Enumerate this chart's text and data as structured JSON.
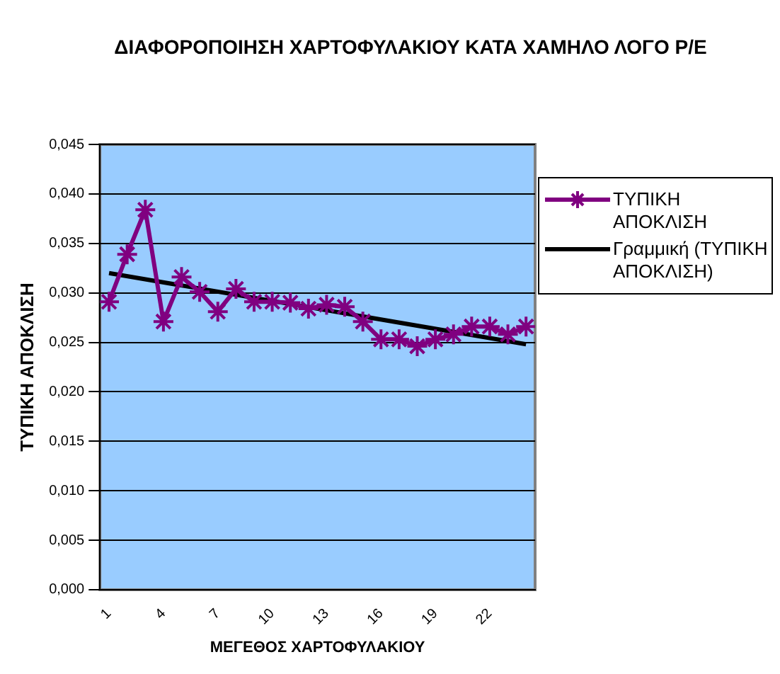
{
  "chart_data": {
    "type": "line",
    "title": "ΔΙΑΦΟΡΟΠΟΙΗΣΗ ΧΑΡΤΟΦΥΛΑΚΙΟΥ ΚΑΤΑ ΧΑΜΗΛΟ ΛΟΓΟ  P/E",
    "xlabel": "ΜΕΓΕΘΟΣ ΧΑΡΤΟΦΥΛΑΚΙΟΥ",
    "ylabel": "ΤΥΠΙΚΗ ΑΠΟΚΛΙΣΗ",
    "x": [
      1,
      2,
      3,
      4,
      5,
      6,
      7,
      8,
      9,
      10,
      11,
      12,
      13,
      14,
      15,
      16,
      17,
      18,
      19,
      20,
      21,
      22,
      23,
      24
    ],
    "series": [
      {
        "name": "ΤΥΠΙΚΗ ΑΠΟΚΛΙΣΗ",
        "color": "#800080",
        "marker": "cross",
        "values": [
          0.0291,
          0.0339,
          0.0384,
          0.0271,
          0.0316,
          0.0301,
          0.0281,
          0.0304,
          0.0291,
          0.0291,
          0.029,
          0.0284,
          0.0288,
          0.0286,
          0.0271,
          0.0253,
          0.0253,
          0.0246,
          0.0253,
          0.0258,
          0.0266,
          0.0266,
          0.0258,
          0.0266
        ]
      },
      {
        "name": "Γραμμική (ΤΥΠΙΚΗ ΑΠΟΚΛΙΣΗ)",
        "color": "#000000",
        "marker": "none",
        "x": [
          1,
          24
        ],
        "values": [
          0.032,
          0.0248
        ]
      }
    ],
    "xlim": [
      0.5,
      24.5
    ],
    "xticks": [
      1,
      4,
      7,
      10,
      13,
      16,
      19,
      22
    ],
    "ylim": [
      0,
      0.045
    ],
    "yticks": [
      {
        "value": 0,
        "label": "0,000"
      },
      {
        "value": 0.005,
        "label": "0,005"
      },
      {
        "value": 0.01,
        "label": "0,010"
      },
      {
        "value": 0.015,
        "label": "0,015"
      },
      {
        "value": 0.02,
        "label": "0,020"
      },
      {
        "value": 0.025,
        "label": "0,025"
      },
      {
        "value": 0.03,
        "label": "0,030"
      },
      {
        "value": 0.035,
        "label": "0,035"
      },
      {
        "value": 0.04,
        "label": "0,040"
      },
      {
        "value": 0.045,
        "label": "0,045"
      }
    ],
    "grid": "y",
    "legend": "right",
    "line_style": "solid"
  }
}
